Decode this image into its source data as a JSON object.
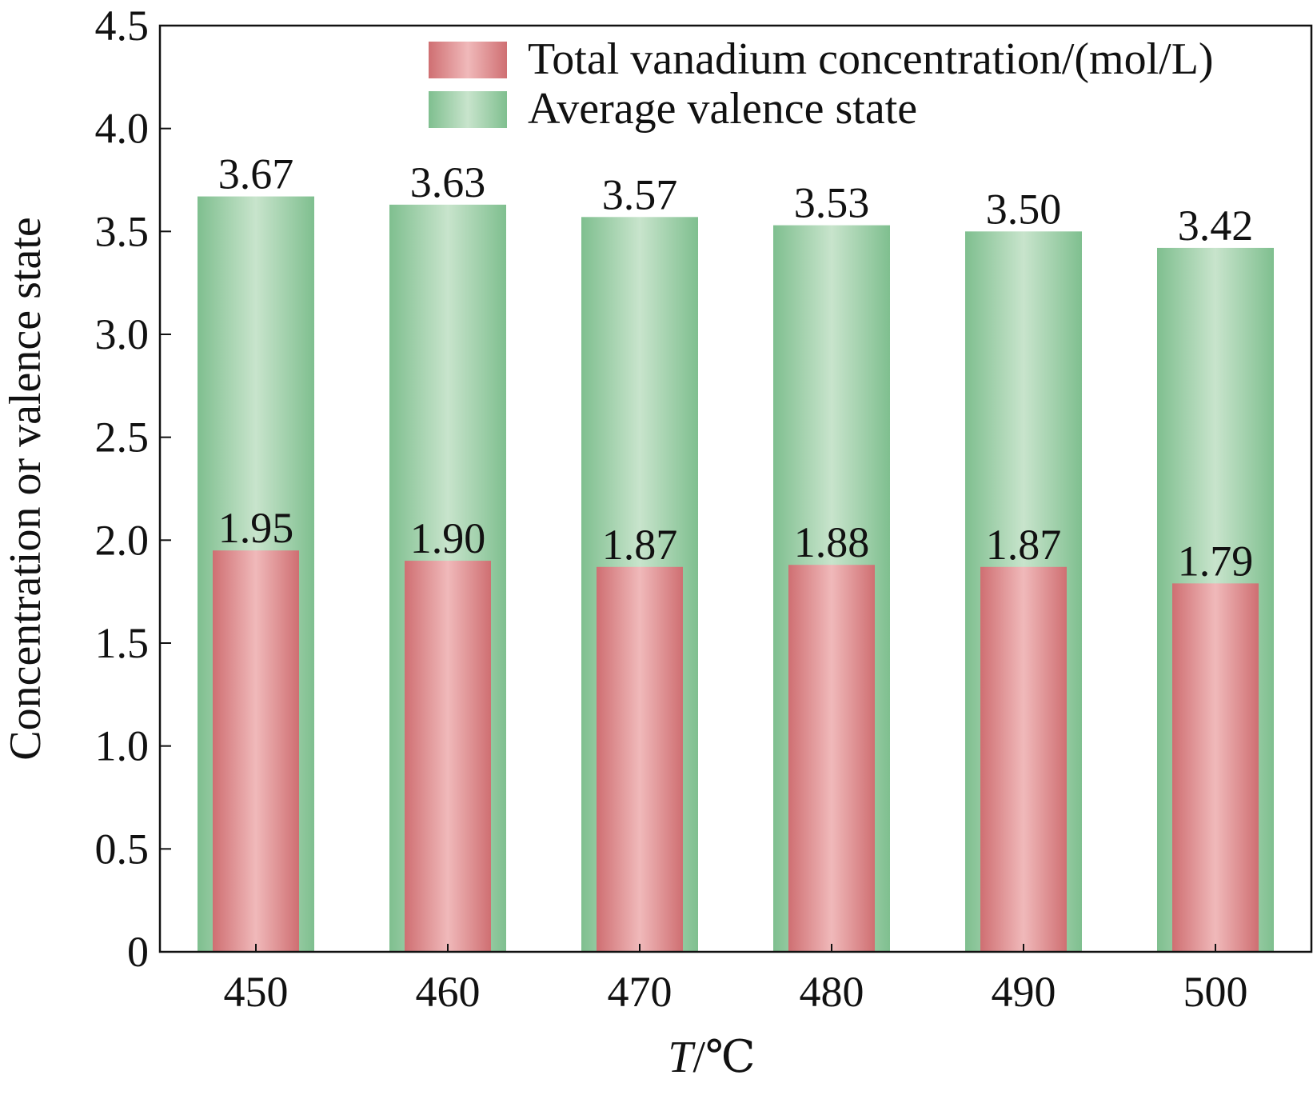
{
  "chart_data": {
    "type": "bar",
    "categories": [
      "450",
      "460",
      "470",
      "480",
      "490",
      "500"
    ],
    "series": [
      {
        "name": "Average valence state",
        "values": [
          3.67,
          3.63,
          3.57,
          3.53,
          3.5,
          3.42
        ],
        "labels": [
          "3.67",
          "3.63",
          "3.57",
          "3.53",
          "3.50",
          "3.42"
        ],
        "color_edge": "#7fbf8f",
        "color_center": "#c8e4cc"
      },
      {
        "name": "Total vanadium concentration/(mol/L)",
        "values": [
          1.95,
          1.9,
          1.87,
          1.88,
          1.87,
          1.79
        ],
        "labels": [
          "1.95",
          "1.90",
          "1.87",
          "1.88",
          "1.87",
          "1.79"
        ],
        "color_edge": "#cf6f72",
        "color_center": "#f0b9ba"
      }
    ],
    "xlabel_italic": "T",
    "xlabel_rest": "/℃",
    "ylabel": "Concentration or valence state",
    "ylim": [
      0,
      4.5
    ],
    "yticks": [
      {
        "v": 0,
        "label": "0"
      },
      {
        "v": 0.5,
        "label": "0.5"
      },
      {
        "v": 1.0,
        "label": "1.0"
      },
      {
        "v": 1.5,
        "label": "1.5"
      },
      {
        "v": 2.0,
        "label": "2.0"
      },
      {
        "v": 2.5,
        "label": "2.5"
      },
      {
        "v": 3.0,
        "label": "3.0"
      },
      {
        "v": 3.5,
        "label": "3.5"
      },
      {
        "v": 4.0,
        "label": "4.0"
      },
      {
        "v": 4.5,
        "label": "4.5"
      }
    ],
    "legend": {
      "position": "top-right",
      "items": [
        "Total vanadium concentration/(mol/L)",
        "Average valence state"
      ]
    },
    "grid": false
  }
}
